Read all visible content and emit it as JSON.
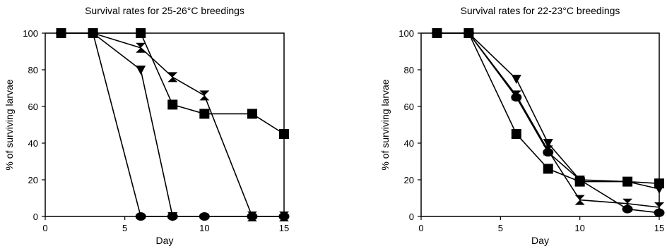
{
  "chart_data": [
    {
      "type": "line",
      "title": "Survival rates for 25-26°C breedings",
      "xlabel": "Day",
      "ylabel": "% of surviving larvae",
      "xlim": [
        0,
        15
      ],
      "ylim": [
        0,
        100
      ],
      "xticks": [
        0,
        5,
        10,
        15
      ],
      "yticks": [
        0,
        20,
        40,
        60,
        80,
        100
      ],
      "grid": false,
      "series": [
        {
          "marker": "square",
          "x": [
            1,
            3,
            6,
            8,
            10,
            13,
            15
          ],
          "y": [
            100,
            100,
            100,
            61,
            56,
            56,
            45
          ]
        },
        {
          "marker": "hourglass",
          "x": [
            1,
            3,
            6,
            8,
            10,
            13,
            15
          ],
          "y": [
            100,
            100,
            92,
            76,
            66,
            0,
            0
          ]
        },
        {
          "marker": "triangle-down",
          "x": [
            1,
            3,
            6,
            8
          ],
          "y": [
            100,
            100,
            80,
            0
          ]
        },
        {
          "marker": "circle",
          "x": [
            1,
            3,
            6,
            8,
            10,
            13,
            15
          ],
          "y": [
            100,
            100,
            0,
            0,
            0,
            0,
            0
          ]
        }
      ]
    },
    {
      "type": "line",
      "title": "Survival rates for 22-23°C breedings",
      "xlabel": "Day",
      "ylabel": "% of surviving larvae",
      "xlim": [
        0,
        15
      ],
      "ylim": [
        0,
        100
      ],
      "xticks": [
        0,
        5,
        10,
        15
      ],
      "yticks": [
        0,
        20,
        40,
        60,
        80,
        100
      ],
      "grid": false,
      "series": [
        {
          "marker": "square",
          "x": [
            1,
            3,
            6,
            8,
            10,
            13,
            15
          ],
          "y": [
            100,
            100,
            45,
            26,
            19,
            19,
            18
          ]
        },
        {
          "marker": "triangle-down",
          "x": [
            1,
            3,
            6,
            8,
            10,
            13,
            15
          ],
          "y": [
            100,
            100,
            75,
            40,
            20,
            19,
            15
          ]
        },
        {
          "marker": "hourglass",
          "x": [
            1,
            3,
            6,
            8,
            10,
            13,
            15
          ],
          "y": [
            100,
            100,
            66,
            36,
            9,
            7,
            5
          ]
        },
        {
          "marker": "circle",
          "x": [
            1,
            3,
            6,
            8,
            10,
            13,
            15
          ],
          "y": [
            100,
            100,
            65,
            35,
            20,
            4,
            2
          ]
        }
      ]
    }
  ]
}
